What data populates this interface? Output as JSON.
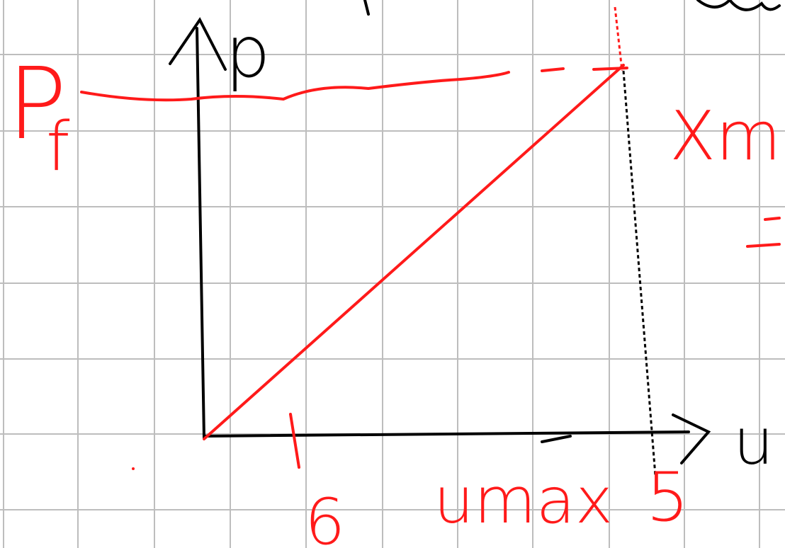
{
  "labels": {
    "y_axis": "p",
    "p_f_main": "P",
    "p_f_sub": "f",
    "x_max": "Xma",
    "x_axis": "u",
    "tick_6": "6",
    "u_max": "umax",
    "tick_5": "5"
  }
}
